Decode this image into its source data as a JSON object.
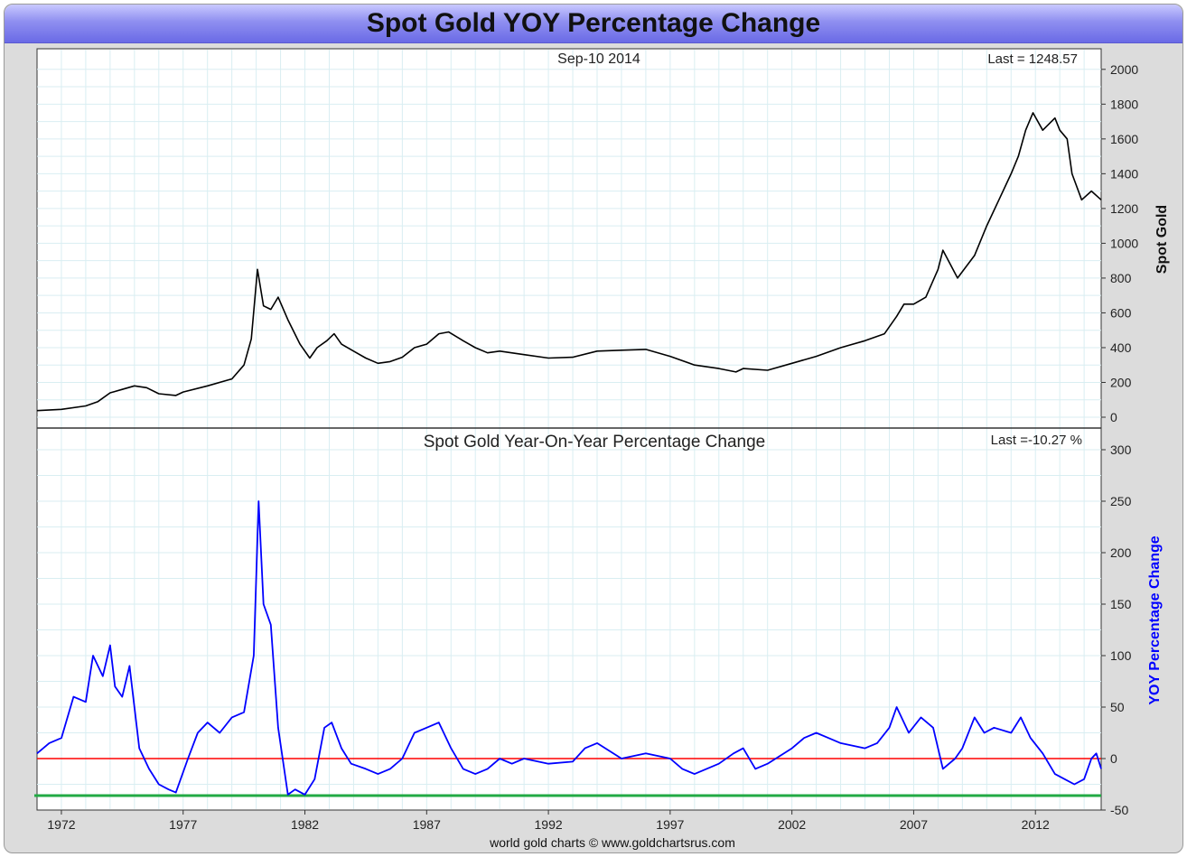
{
  "title": "Spot Gold YOY Percentage Change",
  "footer": "world gold charts © www.goldchartsrus.com",
  "x_ticks": [
    "1972",
    "1977",
    "1982",
    "1987",
    "1992",
    "1997",
    "2002",
    "2007",
    "2012"
  ],
  "top_panel": {
    "date_label": "Sep-10  2014",
    "last_label": "Last = 1248.57",
    "y_axis_label": "Spot Gold",
    "y_ticks": [
      "0",
      "200",
      "400",
      "600",
      "800",
      "1000",
      "1200",
      "1400",
      "1600",
      "1800",
      "2000"
    ]
  },
  "bottom_panel": {
    "title": "Spot Gold Year-On-Year Percentage Change",
    "last_label": "Last =-10.27 %",
    "y_axis_label": "YOY Percentage Change",
    "y_ticks": [
      "-50",
      "0",
      "50",
      "100",
      "150",
      "200",
      "250",
      "300"
    ]
  },
  "colors": {
    "price": "#000000",
    "yoy": "#0000ff",
    "zero_line": "#ff0000",
    "floor_line": "#22aa44",
    "grid": "#d9eef2"
  },
  "chart_data": [
    {
      "type": "line",
      "title": "",
      "ylabel": "Spot Gold",
      "x_ticks": [
        1972,
        1977,
        1982,
        1987,
        1992,
        1997,
        2002,
        2007,
        2012
      ],
      "xlim": [
        1971.0,
        2014.7
      ],
      "ylim": [
        0,
        2100
      ],
      "series": [
        {
          "name": "Spot Gold",
          "x": [
            1971.0,
            1972.0,
            1973.0,
            1973.5,
            1974.0,
            1974.5,
            1975.0,
            1975.5,
            1976.0,
            1976.7,
            1977.0,
            1978.0,
            1979.0,
            1979.5,
            1979.8,
            1980.05,
            1980.3,
            1980.6,
            1980.9,
            1981.3,
            1981.8,
            1982.2,
            1982.5,
            1982.9,
            1983.2,
            1983.5,
            1984.0,
            1984.5,
            1985.0,
            1985.5,
            1986.0,
            1986.5,
            1987.0,
            1987.5,
            1987.9,
            1988.5,
            1989.0,
            1989.5,
            1990.0,
            1991.0,
            1992.0,
            1993.0,
            1994.0,
            1995.0,
            1996.0,
            1997.0,
            1998.0,
            1999.0,
            1999.7,
            2000.0,
            2001.0,
            2002.0,
            2003.0,
            2004.0,
            2005.0,
            2005.8,
            2006.3,
            2006.6,
            2007.0,
            2007.5,
            2008.0,
            2008.2,
            2008.8,
            2009.5,
            2010.0,
            2010.5,
            2011.0,
            2011.3,
            2011.6,
            2011.9,
            2012.3,
            2012.8,
            2013.0,
            2013.3,
            2013.5,
            2013.9,
            2014.3,
            2014.7
          ],
          "y": [
            38,
            45,
            65,
            90,
            140,
            160,
            180,
            170,
            135,
            125,
            145,
            180,
            220,
            300,
            450,
            850,
            640,
            620,
            690,
            560,
            420,
            340,
            400,
            440,
            480,
            420,
            380,
            340,
            310,
            320,
            345,
            400,
            420,
            480,
            490,
            440,
            400,
            370,
            380,
            360,
            340,
            345,
            380,
            385,
            390,
            350,
            300,
            280,
            260,
            280,
            270,
            310,
            350,
            400,
            440,
            480,
            580,
            650,
            650,
            690,
            850,
            960,
            800,
            930,
            1100,
            1250,
            1400,
            1500,
            1650,
            1750,
            1650,
            1720,
            1650,
            1600,
            1400,
            1250,
            1300,
            1250
          ]
        }
      ]
    },
    {
      "type": "line",
      "title": "Spot Gold Year-On-Year Percentage Change",
      "ylabel": "YOY Percentage Change",
      "x_ticks": [
        1972,
        1977,
        1982,
        1987,
        1992,
        1997,
        2002,
        2007,
        2012
      ],
      "xlim": [
        1971.0,
        2014.7
      ],
      "ylim": [
        -50,
        300
      ],
      "series": [
        {
          "name": "YOY Percentage Change",
          "x": [
            1971.0,
            1971.5,
            1972.0,
            1972.5,
            1973.0,
            1973.3,
            1973.7,
            1974.0,
            1974.2,
            1974.5,
            1974.8,
            1975.2,
            1975.6,
            1976.0,
            1976.4,
            1976.7,
            1977.2,
            1977.6,
            1978.0,
            1978.5,
            1979.0,
            1979.5,
            1979.9,
            1980.1,
            1980.3,
            1980.6,
            1980.9,
            1981.3,
            1981.6,
            1982.0,
            1982.4,
            1982.8,
            1983.1,
            1983.5,
            1983.9,
            1984.5,
            1985.0,
            1985.5,
            1986.0,
            1986.5,
            1987.0,
            1987.5,
            1988.0,
            1988.5,
            1989.0,
            1989.5,
            1990.0,
            1990.5,
            1991.0,
            1992.0,
            1993.0,
            1993.5,
            1994.0,
            1995.0,
            1996.0,
            1997.0,
            1997.5,
            1998.0,
            1999.0,
            1999.6,
            2000.0,
            2000.5,
            2001.0,
            2002.0,
            2002.5,
            2003.0,
            2003.5,
            2004.0,
            2005.0,
            2005.5,
            2006.0,
            2006.3,
            2006.8,
            2007.3,
            2007.8,
            2008.2,
            2008.7,
            2009.0,
            2009.5,
            2009.9,
            2010.3,
            2011.0,
            2011.4,
            2011.8,
            2012.3,
            2012.8,
            2013.2,
            2013.6,
            2014.0,
            2014.3,
            2014.5,
            2014.7
          ],
          "y": [
            5,
            15,
            20,
            60,
            55,
            100,
            80,
            110,
            70,
            60,
            90,
            10,
            -10,
            -25,
            -30,
            -33,
            0,
            25,
            35,
            25,
            40,
            45,
            100,
            250,
            150,
            130,
            30,
            -35,
            -30,
            -35,
            -20,
            30,
            35,
            10,
            -5,
            -10,
            -15,
            -10,
            0,
            25,
            30,
            35,
            10,
            -10,
            -15,
            -10,
            0,
            -5,
            0,
            -5,
            -3,
            10,
            15,
            0,
            5,
            0,
            -10,
            -15,
            -5,
            5,
            10,
            -10,
            -5,
            10,
            20,
            25,
            20,
            15,
            10,
            15,
            30,
            50,
            25,
            40,
            30,
            -10,
            0,
            10,
            40,
            25,
            30,
            25,
            40,
            20,
            5,
            -15,
            -20,
            -25,
            -20,
            0,
            5,
            -10
          ]
        }
      ]
    }
  ]
}
